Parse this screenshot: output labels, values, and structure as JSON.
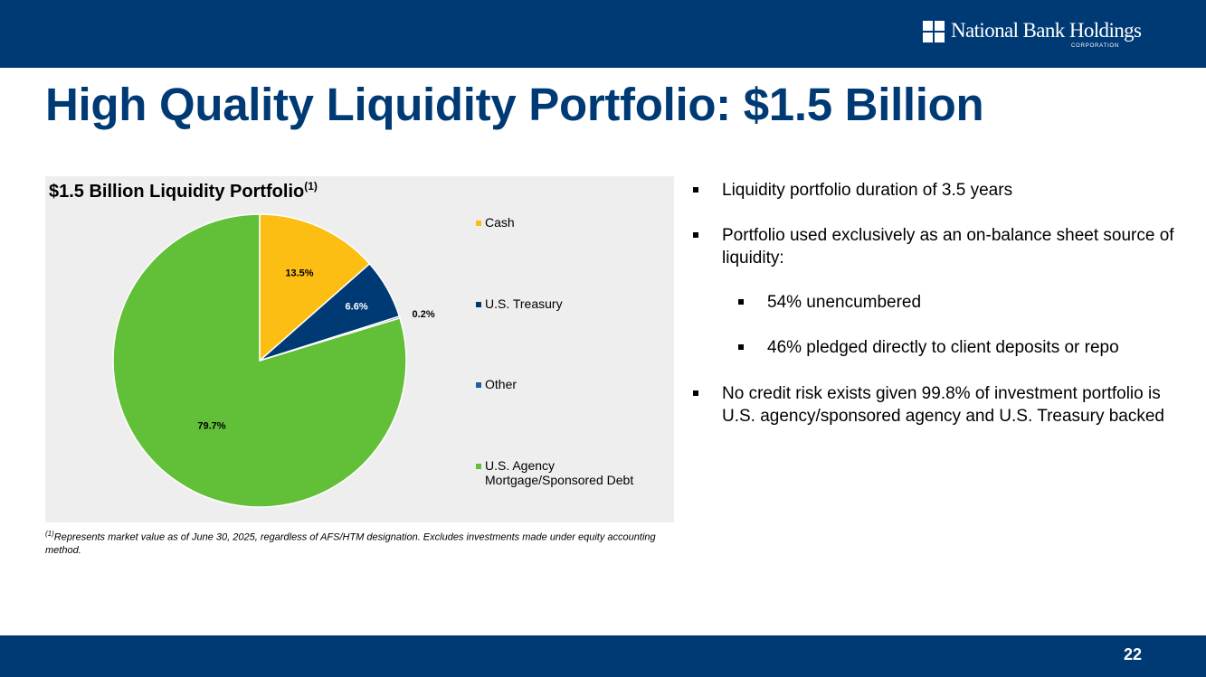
{
  "brand": {
    "name": "National Bank Holdings",
    "sub": "CORPORATION",
    "primary_color": "#003a75"
  },
  "slide": {
    "title": "High Quality Liquidity Portfolio: $1.5 Billion",
    "page_number": "22"
  },
  "chart_panel": {
    "title": "$1.5 Billion Liquidity Portfolio",
    "title_superscript": "(1)"
  },
  "chart_data": {
    "type": "pie",
    "title": "$1.5 Billion Liquidity Portfolio",
    "slices": [
      {
        "label": "Cash",
        "value": 13.5,
        "display": "13.5%",
        "color": "#fdbe13"
      },
      {
        "label": "U.S. Treasury",
        "value": 6.6,
        "display": "6.6%",
        "color": "#003a75"
      },
      {
        "label": "Other",
        "value": 0.2,
        "display": "0.2%",
        "color": "#1f5fa3"
      },
      {
        "label": "U.S. Agency Mortgage/Sponsored Debt",
        "value": 79.7,
        "display": "79.7%",
        "color": "#62bf38"
      }
    ],
    "legend_position": "right"
  },
  "legend": [
    {
      "label": "Cash"
    },
    {
      "label": "U.S. Treasury"
    },
    {
      "label": "Other"
    },
    {
      "label": "U.S. Agency Mortgage/Sponsored Debt"
    }
  ],
  "footnote": {
    "marker": "(1)",
    "text": "Represents market value as of June 30, 2025, regardless of AFS/HTM designation. Excludes investments made under equity accounting method."
  },
  "bullets": [
    {
      "text": "Liquidity portfolio duration of 3.5 years"
    },
    {
      "text": "Portfolio used exclusively as an on-balance sheet source of liquidity:"
    },
    {
      "text": "54% unencumbered"
    },
    {
      "text": "46% pledged directly to client deposits or repo"
    },
    {
      "text": "No credit risk exists given 99.8% of investment portfolio is U.S. agency/sponsored agency and U.S. Treasury backed"
    }
  ]
}
